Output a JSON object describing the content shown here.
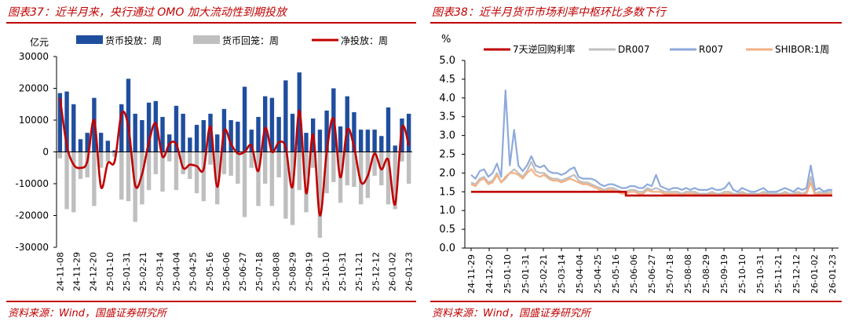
{
  "left": {
    "title": "图表37：近半月来，央行通过 OMO 加大流动性到期投放",
    "source": "资料来源：Wind，国盛证券研究所",
    "chart_data": {
      "type": "bar",
      "unit_label": "亿元",
      "ylim": [
        -30000,
        30000
      ],
      "yticks": [
        30000,
        20000,
        10000,
        0,
        -10000,
        -20000,
        -30000
      ],
      "x_tick_labels": [
        "24-11-08",
        "24-11-29",
        "24-12-20",
        "25-01-10",
        "25-01-31",
        "25-02-21",
        "25-03-14",
        "25-04-04",
        "25-04-25",
        "25-05-16",
        "25-06-06",
        "25-06-27",
        "25-07-18",
        "25-08-08",
        "25-08-29",
        "25-09-19",
        "25-10-10",
        "25-10-31",
        "25-11-21",
        "25-12-12",
        "26-01-02",
        "26-01-23"
      ],
      "legend_position": "top",
      "series": [
        {
          "name": "货币投放：周",
          "type": "bar",
          "color": "#1f4e9e",
          "values": [
            18500,
            19000,
            15000,
            4000,
            6000,
            17000,
            6000,
            3500,
            500,
            15000,
            23000,
            12000,
            10000,
            15500,
            16000,
            11000,
            5500,
            14500,
            12000,
            4500,
            8500,
            10000,
            12000,
            5500,
            13500,
            10000,
            9500,
            20500,
            7000,
            11000,
            17500,
            17000,
            11000,
            22500,
            12000,
            25000,
            6000,
            10500,
            7000,
            13000,
            20000,
            8000,
            17500,
            12500,
            7000,
            7000,
            7000,
            5000,
            14000,
            2000,
            10500,
            12000
          ]
        },
        {
          "name": "货币回笼：周",
          "type": "bar",
          "color": "#bfbfbf",
          "values": [
            -2000,
            -18000,
            -19000,
            -8500,
            -8000,
            -17000,
            -5000,
            -3000,
            -1500,
            -15000,
            -15500,
            -22000,
            -16500,
            -12000,
            -7000,
            -12500,
            -3000,
            -12000,
            -7000,
            -8500,
            -13000,
            -15500,
            -4000,
            -16500,
            -7000,
            -7500,
            -10000,
            -20500,
            -5000,
            -17000,
            -10000,
            -17000,
            -8000,
            -21000,
            -23000,
            -12000,
            -19000,
            -5000,
            -27000,
            -13000,
            -9500,
            -16000,
            -10500,
            -11000,
            -16500,
            -14500,
            -7500,
            -10500,
            -16500,
            -18000,
            -3000,
            -10000
          ]
        },
        {
          "name": "净投放：周",
          "type": "line",
          "color": "#c00000",
          "values": [
            17000,
            2000,
            -4000,
            -5000,
            -3000,
            10000,
            -11000,
            -3500,
            -3000,
            12000,
            8000,
            -10500,
            -7000,
            3000,
            9000,
            -1500,
            2500,
            2500,
            -5000,
            -4000,
            -4500,
            -5500,
            8000,
            -11000,
            6500,
            2500,
            -500,
            0,
            2000,
            -6000,
            7500,
            0,
            3000,
            1500,
            -11000,
            13000,
            -13000,
            5500,
            -20000,
            0,
            10500,
            -8000,
            7000,
            1500,
            -9500,
            -7500,
            -500,
            -5500,
            -2500,
            -16500,
            7500,
            2000
          ]
        }
      ]
    }
  },
  "right": {
    "title": "图表38：近半月货币市场利率中枢环比多数下行",
    "source": "资料来源：Wind，国盛证券研究所",
    "chart_data": {
      "type": "line",
      "unit_label": "%",
      "ylim": [
        0,
        5
      ],
      "yticks": [
        5.0,
        4.5,
        4.0,
        3.5,
        3.0,
        2.5,
        2.0,
        1.5,
        1.0,
        0.5,
        0.0
      ],
      "x_tick_labels": [
        "24-11-29",
        "24-12-20",
        "25-01-10",
        "25-01-31",
        "25-02-21",
        "25-03-14",
        "25-04-04",
        "25-04-25",
        "25-05-16",
        "25-06-06",
        "25-06-27",
        "25-07-18",
        "25-08-08",
        "25-08-29",
        "25-09-19",
        "25-10-10",
        "25-10-31",
        "25-11-21",
        "25-12-12",
        "26-01-02",
        "26-01-23"
      ],
      "legend_position": "top",
      "series": [
        {
          "name": "7天逆回购利率",
          "color": "#c00000",
          "values": [
            1.5,
            1.5,
            1.5,
            1.5,
            1.5,
            1.5,
            1.5,
            1.5,
            1.5,
            1.5,
            1.5,
            1.5,
            1.5,
            1.5,
            1.5,
            1.5,
            1.5,
            1.5,
            1.5,
            1.5,
            1.5,
            1.5,
            1.5,
            1.5,
            1.5,
            1.5,
            1.5,
            1.5,
            1.5,
            1.5,
            1.5,
            1.5,
            1.5,
            1.5,
            1.5,
            1.5,
            1.4,
            1.4,
            1.4,
            1.4,
            1.4,
            1.4,
            1.4,
            1.4,
            1.4,
            1.4,
            1.4,
            1.4,
            1.4,
            1.4,
            1.4,
            1.4,
            1.4,
            1.4,
            1.4,
            1.4,
            1.4,
            1.4,
            1.4,
            1.4,
            1.4,
            1.4,
            1.4,
            1.4,
            1.4,
            1.4,
            1.4,
            1.4,
            1.4,
            1.4,
            1.4,
            1.4,
            1.4,
            1.4,
            1.4,
            1.4,
            1.4,
            1.4,
            1.4,
            1.4,
            1.4,
            1.4,
            1.4,
            1.4,
            1.4
          ]
        },
        {
          "name": "DR007",
          "color": "#bfbfbf",
          "values": [
            1.75,
            1.7,
            1.85,
            1.9,
            1.75,
            1.8,
            2.0,
            1.75,
            1.85,
            2.0,
            2.1,
            2.0,
            1.9,
            2.05,
            2.3,
            2.05,
            2.0,
            2.0,
            1.9,
            1.85,
            1.85,
            1.8,
            1.85,
            1.9,
            1.95,
            1.8,
            1.75,
            1.75,
            1.7,
            1.65,
            1.6,
            1.55,
            1.6,
            1.6,
            1.55,
            1.5,
            1.5,
            1.55,
            1.55,
            1.5,
            1.5,
            1.6,
            1.55,
            1.6,
            1.55,
            1.5,
            1.5,
            1.5,
            1.5,
            1.45,
            1.5,
            1.5,
            1.5,
            1.45,
            1.45,
            1.45,
            1.5,
            1.45,
            1.45,
            1.5,
            1.5,
            1.45,
            1.45,
            1.5,
            1.45,
            1.45,
            1.45,
            1.45,
            1.5,
            1.45,
            1.45,
            1.45,
            1.45,
            1.5,
            1.45,
            1.45,
            1.5,
            1.45,
            1.5,
            1.9,
            1.45,
            1.5,
            1.45,
            1.5,
            1.5
          ]
        },
        {
          "name": "R007",
          "color": "#8eaadb",
          "values": [
            1.95,
            1.85,
            2.05,
            2.1,
            1.9,
            2.0,
            2.25,
            1.9,
            4.2,
            2.2,
            3.15,
            2.2,
            2.05,
            2.2,
            2.45,
            2.2,
            2.15,
            2.2,
            2.05,
            2.0,
            2.0,
            1.95,
            2.0,
            2.1,
            2.15,
            1.9,
            1.85,
            1.85,
            1.85,
            1.8,
            1.7,
            1.65,
            1.7,
            1.7,
            1.65,
            1.6,
            1.6,
            1.65,
            1.65,
            1.6,
            1.6,
            1.7,
            1.65,
            1.95,
            1.65,
            1.6,
            1.55,
            1.6,
            1.6,
            1.55,
            1.6,
            1.55,
            1.6,
            1.55,
            1.55,
            1.55,
            1.6,
            1.55,
            1.55,
            1.6,
            1.75,
            1.55,
            1.5,
            1.6,
            1.55,
            1.5,
            1.5,
            1.55,
            1.6,
            1.5,
            1.5,
            1.5,
            1.55,
            1.6,
            1.55,
            1.5,
            1.6,
            1.55,
            1.6,
            2.2,
            1.55,
            1.6,
            1.5,
            1.55,
            1.55
          ]
        },
        {
          "name": "SHIBOR:1周",
          "color": "#f4b183",
          "values": [
            1.7,
            1.65,
            1.8,
            1.85,
            1.7,
            1.75,
            1.95,
            1.75,
            1.9,
            2.0,
            2.0,
            1.95,
            1.85,
            2.0,
            2.1,
            1.95,
            1.9,
            1.95,
            1.85,
            1.8,
            1.8,
            1.75,
            1.8,
            1.85,
            1.8,
            1.75,
            1.7,
            1.7,
            1.65,
            1.6,
            1.55,
            1.5,
            1.55,
            1.55,
            1.5,
            1.45,
            1.45,
            1.5,
            1.5,
            1.45,
            1.45,
            1.55,
            1.5,
            1.5,
            1.5,
            1.45,
            1.45,
            1.45,
            1.45,
            1.4,
            1.45,
            1.45,
            1.45,
            1.4,
            1.4,
            1.4,
            1.45,
            1.4,
            1.4,
            1.45,
            1.45,
            1.4,
            1.4,
            1.45,
            1.4,
            1.4,
            1.4,
            1.4,
            1.45,
            1.4,
            1.4,
            1.4,
            1.4,
            1.45,
            1.4,
            1.4,
            1.45,
            1.4,
            1.45,
            1.75,
            1.4,
            1.45,
            1.4,
            1.45,
            1.45
          ]
        }
      ]
    }
  }
}
